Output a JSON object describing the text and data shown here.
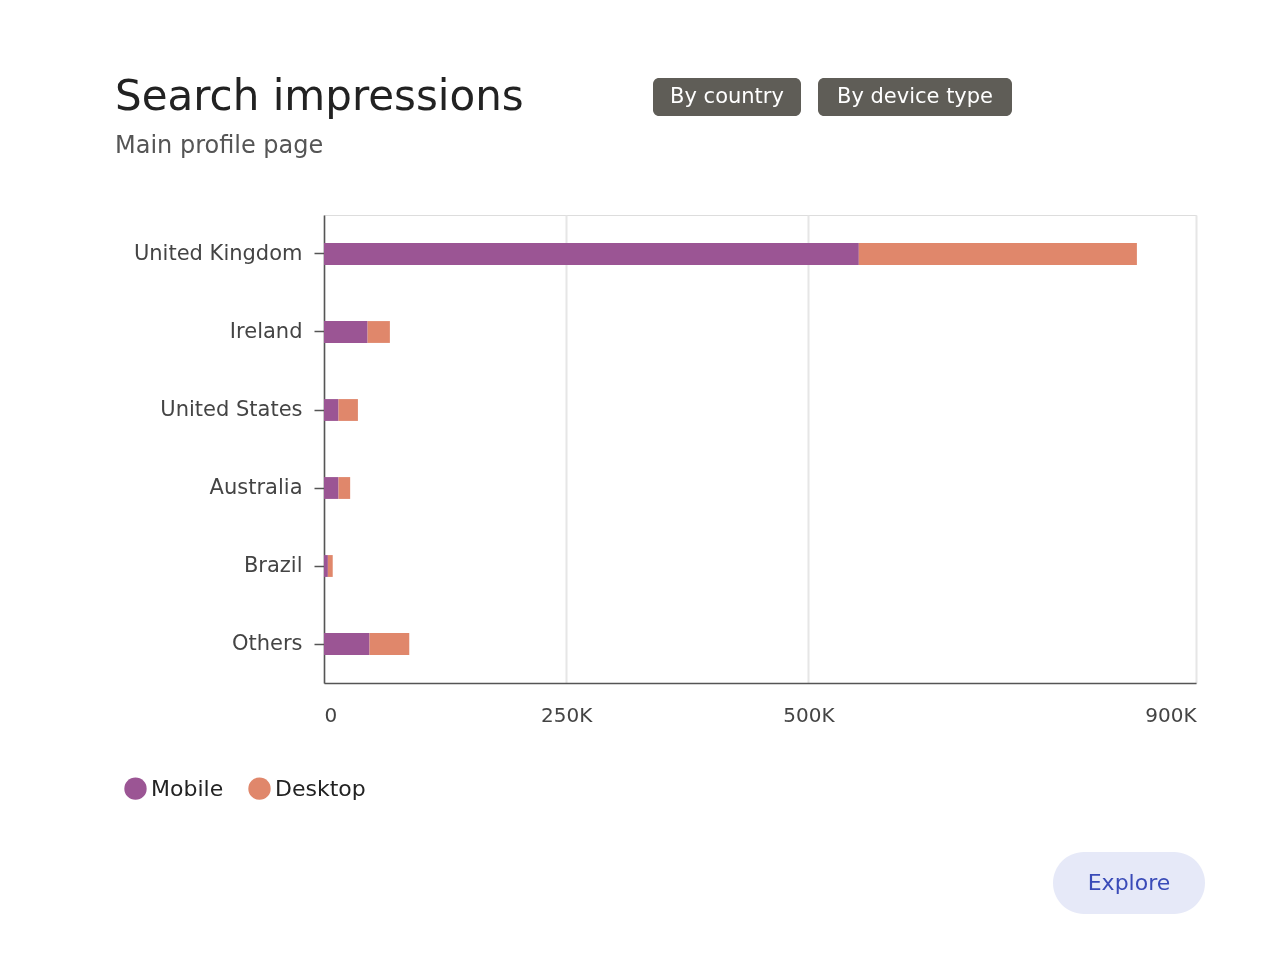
{
  "chart_data": {
    "type": "bar",
    "orientation": "horizontal",
    "stacked": true,
    "title": "Search impressions",
    "subtitle": "Main profile page",
    "categories": [
      "United Kingdom",
      "Ireland",
      "United States",
      "Australia",
      "Brazil",
      "Others"
    ],
    "series": [
      {
        "name": "Mobile",
        "color": "#9b5594",
        "values": [
          552000,
          45000,
          15000,
          15000,
          4000,
          47000
        ]
      },
      {
        "name": "Desktop",
        "color": "#e0876b",
        "values": [
          287000,
          23000,
          20000,
          12000,
          5000,
          41000
        ]
      }
    ],
    "xlim": [
      0,
      900000
    ],
    "xticks": [
      0,
      {
        "value": 250000,
        "label": "250K"
      },
      {
        "value": 500000,
        "label": "500K"
      },
      {
        "value": 900000,
        "label": "900K"
      }
    ],
    "grid": "x",
    "legend": "bottom left",
    "annotations": [
      "By country",
      "By device type",
      "Explore"
    ]
  }
}
